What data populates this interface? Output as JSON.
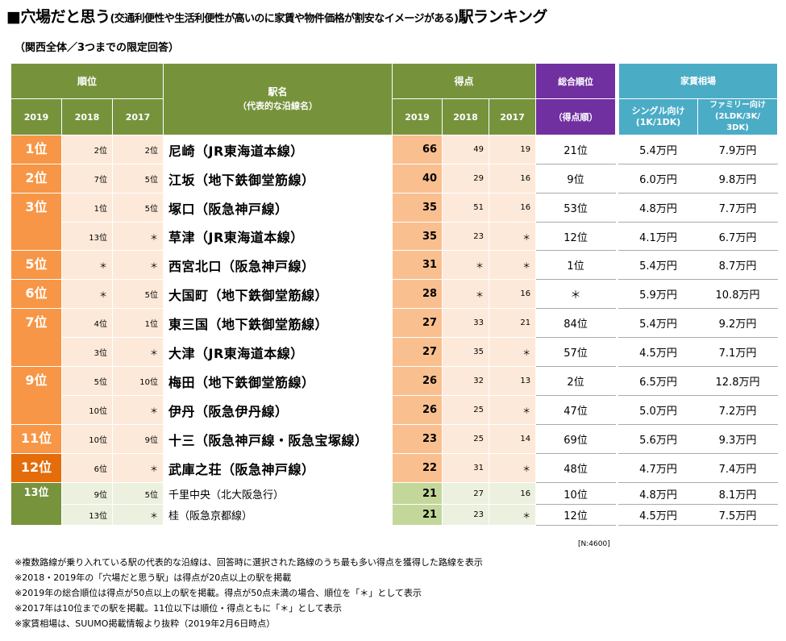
{
  "title": {
    "lead": "■穴場だと思う",
    "paren": "(交通利便性や生活利便性が高いのに家賃や物件価格が割安なイメージがある)",
    "tail": "駅ランキング"
  },
  "subtitle": "（関西全体／3つまでの限定回答）",
  "headers": {
    "rank": "順位",
    "station": "駅名",
    "station_sub": "（代表的な沿線名）",
    "points": "得点",
    "overall": "総合順位",
    "overall_sub": "（得点順）",
    "rent": "家賃相場",
    "single": "シングル向け",
    "single_sub": "(1K/1DK)",
    "family": "ファミリー向け",
    "family_sub": "(2LDK/3K/",
    "family_sub2": "3DK)",
    "y2019": "2019",
    "y2018": "2018",
    "y2017": "2017"
  },
  "ranks": [
    "1位",
    "2位",
    "3位",
    "5位",
    "6位",
    "7位",
    "9位",
    "11位",
    "12位",
    "13位"
  ],
  "rows": [
    {
      "r2018": "2位",
      "r2017": "2位",
      "station": "尼崎（JR東海道本線）",
      "p2019": "66",
      "p2018": "49",
      "p2017": "19",
      "overall": "21位",
      "single": "5.4万円",
      "family": "7.9万円"
    },
    {
      "r2018": "7位",
      "r2017": "5位",
      "station": "江坂（地下鉄御堂筋線）",
      "p2019": "40",
      "p2018": "29",
      "p2017": "16",
      "overall": "9位",
      "single": "6.0万円",
      "family": "9.8万円"
    },
    {
      "r2018": "1位",
      "r2017": "5位",
      "station": "塚口（阪急神戸線）",
      "p2019": "35",
      "p2018": "51",
      "p2017": "16",
      "overall": "53位",
      "single": "4.8万円",
      "family": "7.7万円"
    },
    {
      "r2018": "13位",
      "r2017": "＊",
      "station": "草津（JR東海道本線）",
      "p2019": "35",
      "p2018": "23",
      "p2017": "＊",
      "overall": "12位",
      "single": "4.1万円",
      "family": "6.7万円"
    },
    {
      "r2018": "＊",
      "r2017": "＊",
      "station": "西宮北口（阪急神戸線）",
      "p2019": "31",
      "p2018": "＊",
      "p2017": "＊",
      "overall": "1位",
      "single": "5.4万円",
      "family": "8.7万円"
    },
    {
      "r2018": "＊",
      "r2017": "5位",
      "station": "大国町（地下鉄御堂筋線）",
      "p2019": "28",
      "p2018": "＊",
      "p2017": "16",
      "overall": "＊",
      "single": "5.9万円",
      "family": "10.8万円"
    },
    {
      "r2018": "4位",
      "r2017": "1位",
      "station": "東三国（地下鉄御堂筋線）",
      "p2019": "27",
      "p2018": "33",
      "p2017": "21",
      "overall": "84位",
      "single": "5.4万円",
      "family": "9.2万円"
    },
    {
      "r2018": "3位",
      "r2017": "＊",
      "station": "大津（JR東海道本線）",
      "p2019": "27",
      "p2018": "35",
      "p2017": "＊",
      "overall": "57位",
      "single": "4.5万円",
      "family": "7.1万円"
    },
    {
      "r2018": "5位",
      "r2017": "10位",
      "station": "梅田（地下鉄御堂筋線）",
      "p2019": "26",
      "p2018": "32",
      "p2017": "13",
      "overall": "2位",
      "single": "6.5万円",
      "family": "12.8万円"
    },
    {
      "r2018": "10位",
      "r2017": "＊",
      "station": "伊丹（阪急伊丹線）",
      "p2019": "26",
      "p2018": "25",
      "p2017": "＊",
      "overall": "47位",
      "single": "5.0万円",
      "family": "7.2万円"
    },
    {
      "r2018": "10位",
      "r2017": "9位",
      "station": "十三（阪急神戸線・阪急宝塚線）",
      "p2019": "23",
      "p2018": "25",
      "p2017": "14",
      "overall": "69位",
      "single": "5.6万円",
      "family": "9.3万円"
    },
    {
      "r2018": "6位",
      "r2017": "＊",
      "station": "武庫之荘（阪急神戸線）",
      "p2019": "22",
      "p2018": "31",
      "p2017": "＊",
      "overall": "48位",
      "single": "4.7万円",
      "family": "7.4万円"
    },
    {
      "r2018": "9位",
      "r2017": "5位",
      "station": "千里中央（北大阪急行）",
      "p2019": "21",
      "p2018": "27",
      "p2017": "16",
      "overall": "10位",
      "single": "4.8万円",
      "family": "8.1万円"
    },
    {
      "r2018": "13位",
      "r2017": "＊",
      "station": "桂（阪急京都線）",
      "p2019": "21",
      "p2018": "23",
      "p2017": "＊",
      "overall": "12位",
      "single": "4.5万円",
      "family": "7.5万円"
    }
  ],
  "sample": "[N:4600]",
  "notes": [
    "※複数路線が乗り入れている駅の代表的な沿線は、回答時に選択された路線のうち最も多い得点を獲得した路線を表示",
    "※2018・2019年の「穴場だと思う駅」は得点が20点以上の駅を掲載",
    "※2019年の総合順位は得点が50点以上の駅を掲載。得点が50点未満の場合、順位を「＊」として表示",
    "※2017年は10位までの駅を掲載。11位以下は順位・得点ともに「＊」として表示",
    "※家賃相場は、SUUMO掲載情報より抜粋（2019年2月6日時点）"
  ]
}
